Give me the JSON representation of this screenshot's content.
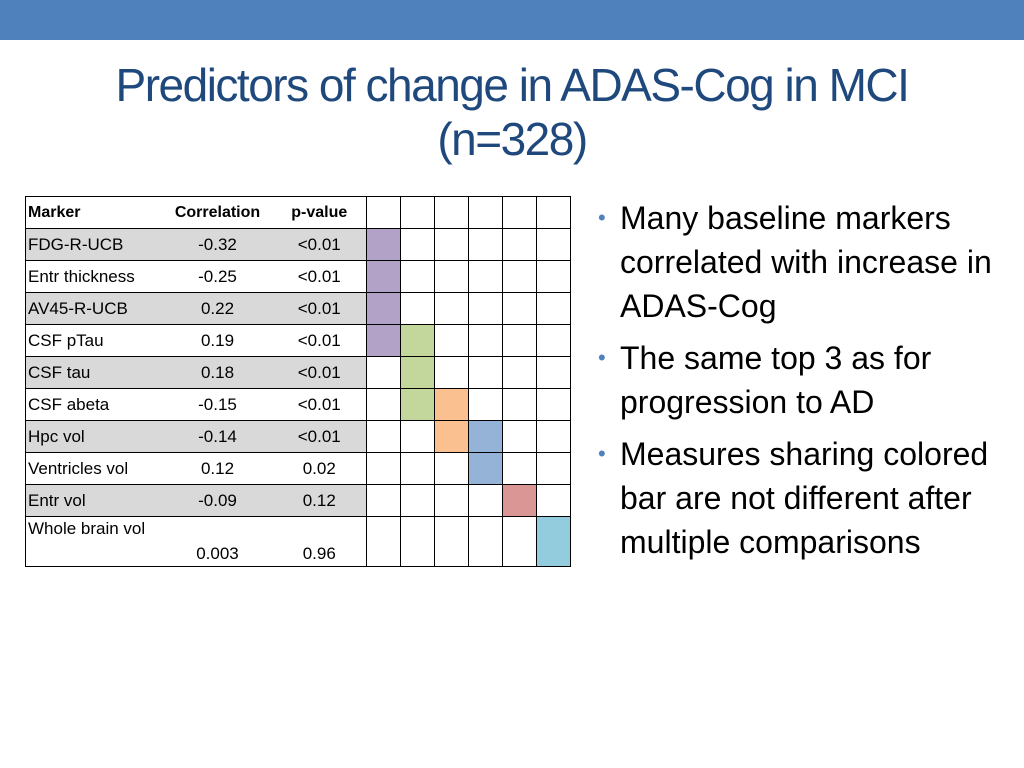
{
  "title": {
    "line1": "Predictors of change in ADAS-Cog in MCI",
    "line2": "(n=328)"
  },
  "table": {
    "headers": [
      "Marker",
      "Correlation",
      "p-value"
    ],
    "rows": [
      {
        "marker": "FDG-R-UCB",
        "correlation": "-0.32",
        "p": "<0.01",
        "shaded": true,
        "bars": [
          "#b3a2c7",
          "",
          "",
          "",
          "",
          ""
        ]
      },
      {
        "marker": "Entr thickness",
        "correlation": "-0.25",
        "p": "<0.01",
        "shaded": false,
        "bars": [
          "#b3a2c7",
          "",
          "",
          "",
          "",
          ""
        ]
      },
      {
        "marker": "AV45-R-UCB",
        "correlation": "0.22",
        "p": "<0.01",
        "shaded": true,
        "bars": [
          "#b3a2c7",
          "",
          "",
          "",
          "",
          ""
        ]
      },
      {
        "marker": "CSF pTau",
        "correlation": "0.19",
        "p": "<0.01",
        "shaded": false,
        "bars": [
          "#b3a2c7",
          "#c3d69b",
          "",
          "",
          "",
          ""
        ]
      },
      {
        "marker": "CSF tau",
        "correlation": "0.18",
        "p": "<0.01",
        "shaded": true,
        "bars": [
          "",
          "#c3d69b",
          "",
          "",
          "",
          ""
        ]
      },
      {
        "marker": "CSF abeta",
        "correlation": "-0.15",
        "p": "<0.01",
        "shaded": false,
        "bars": [
          "",
          "#c3d69b",
          "#fac090",
          "",
          "",
          ""
        ]
      },
      {
        "marker": "Hpc vol",
        "correlation": "-0.14",
        "p": "<0.01",
        "shaded": true,
        "bars": [
          "",
          "",
          "#fac090",
          "#95b3d7",
          "",
          ""
        ]
      },
      {
        "marker": "Ventricles vol",
        "correlation": "0.12",
        "p": "0.02",
        "shaded": false,
        "bars": [
          "",
          "",
          "",
          "#95b3d7",
          "",
          ""
        ]
      },
      {
        "marker": "Entr vol",
        "correlation": "-0.09",
        "p": "0.12",
        "shaded": true,
        "bars": [
          "",
          "",
          "",
          "",
          "#d99694",
          ""
        ]
      },
      {
        "marker": "Whole brain vol",
        "correlation": "0.003",
        "p": "0.96",
        "shaded": false,
        "bars": [
          "",
          "",
          "",
          "",
          "",
          "#93cddd"
        ]
      }
    ]
  },
  "bullets": [
    "Many baseline markers correlated with increase in ADAS-Cog",
    "The same top 3 as for progression to AD",
    "Measures sharing colored bar are not different after multiple comparisons"
  ],
  "colors": {
    "band": "#4f81bd",
    "title": "#1f497d",
    "shade": "#d9d9d9"
  }
}
